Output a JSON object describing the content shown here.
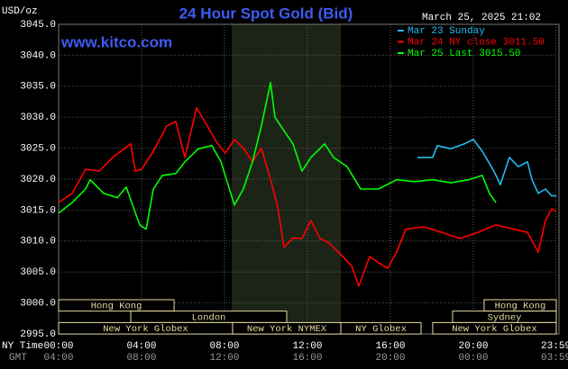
{
  "chart_data": {
    "type": "line",
    "title": "24 Hour Spot Gold (Bid)",
    "unit_label": "USD/oz",
    "timestamp": "March 25, 2025 21:02",
    "website": "www.kitco.com",
    "x_time_label": "NY Time",
    "x_gmt_label": "GMT",
    "xlim": [
      0,
      24
    ],
    "ylim": [
      2995,
      3045
    ],
    "xticks": [
      {
        "value": 0,
        "label": "00:00"
      },
      {
        "value": 4,
        "label": "04:00"
      },
      {
        "value": 8,
        "label": "08:00"
      },
      {
        "value": 12,
        "label": "12:00"
      },
      {
        "value": 16,
        "label": "16:00"
      },
      {
        "value": 20,
        "label": "20:00"
      },
      {
        "value": 23.98,
        "label": "23:59"
      }
    ],
    "gmt_labels": [
      "04:00",
      "08:00",
      "12:00",
      "16:00",
      "20:00",
      "00:00",
      "03:59"
    ],
    "yticks": [
      {
        "value": 2995,
        "label": "2995.0"
      },
      {
        "value": 3000,
        "label": "3000.0"
      },
      {
        "value": 3005,
        "label": "3005.0"
      },
      {
        "value": 3010,
        "label": "3010.0"
      },
      {
        "value": 3015,
        "label": "3015.0"
      },
      {
        "value": 3020,
        "label": "3020.0"
      },
      {
        "value": 3025,
        "label": "3025.0"
      },
      {
        "value": 3030,
        "label": "3030.0"
      },
      {
        "value": 3035,
        "label": "3035.0"
      },
      {
        "value": 3040,
        "label": "3040.0"
      },
      {
        "value": 3045,
        "label": "3045.0"
      }
    ],
    "grid": true,
    "series": [
      {
        "name": "Mar 23 Sunday",
        "color": "#22bbee",
        "x": [
          17.3,
          18.04,
          18.26,
          18.91,
          19.57,
          20,
          20.43,
          20.87,
          21.09,
          21.3,
          21.74,
          22.17,
          22.61,
          22.83,
          23.13,
          23.48,
          23.78,
          24
        ],
        "values": [
          3023.5,
          3023.5,
          3025.4,
          3024.9,
          3025.7,
          3026.4,
          3024.5,
          3022,
          3020.6,
          3019.1,
          3023.5,
          3022,
          3022.8,
          3019.9,
          3017.7,
          3018.4,
          3017.3,
          3017.3
        ]
      },
      {
        "name": "Mar 24 NY close 3011.50",
        "color": "#ff0000",
        "x": [
          0,
          0.65,
          1.3,
          1.96,
          2.61,
          3.48,
          3.7,
          4,
          4.57,
          5.22,
          5.65,
          6.09,
          6.65,
          7.17,
          7.61,
          8.04,
          8.48,
          8.91,
          9.35,
          9.78,
          10.22,
          10.57,
          10.87,
          11.3,
          11.74,
          12.17,
          12.61,
          13.04,
          13.7,
          14.13,
          14.48,
          15,
          15.43,
          15.87,
          16.3,
          16.74,
          17.61,
          18.48,
          19.35,
          20.22,
          21.09,
          21.96,
          22.61,
          23.13,
          23.48,
          23.78,
          24
        ],
        "values": [
          3016.2,
          3017.7,
          3021.6,
          3021.3,
          3023.5,
          3025.7,
          3021.3,
          3021.6,
          3024.5,
          3028.6,
          3029.3,
          3023.5,
          3031.5,
          3028.6,
          3026,
          3024.2,
          3026.4,
          3025,
          3022.8,
          3025,
          3019.9,
          3015.5,
          3009,
          3010.5,
          3010.4,
          3013.3,
          3010.4,
          3009.7,
          3007.5,
          3006,
          3002.7,
          3007.5,
          3006.5,
          3005.6,
          3008.2,
          3011.9,
          3012.3,
          3011.4,
          3010.4,
          3011.4,
          3012.6,
          3011.9,
          3011.4,
          3008.2,
          3013.3,
          3015.2,
          3014.8
        ]
      },
      {
        "name": "Mar 25 Last 3015.50",
        "color": "#00ff00",
        "x": [
          0,
          0.65,
          1.3,
          1.52,
          2.17,
          2.83,
          3.26,
          3.91,
          4.22,
          4.57,
          5,
          5.65,
          6.09,
          6.74,
          7.39,
          7.83,
          8.48,
          8.91,
          9.35,
          9.78,
          10.22,
          10.43,
          10.87,
          11.3,
          11.74,
          12.17,
          12.83,
          13.26,
          13.91,
          14.57,
          15.43,
          16.3,
          17.17,
          18.04,
          18.91,
          19.78,
          20.43,
          20.78,
          21.09
        ],
        "values": [
          3014.5,
          3016.2,
          3018.4,
          3019.9,
          3017.7,
          3017,
          3018.7,
          3012.6,
          3011.9,
          3018.4,
          3020.6,
          3020.9,
          3022.8,
          3024.9,
          3025.4,
          3022.8,
          3015.8,
          3018.4,
          3022.8,
          3028.6,
          3035.6,
          3030,
          3027.8,
          3025.7,
          3021.3,
          3023.5,
          3025.7,
          3023.5,
          3022,
          3018.4,
          3018.4,
          3019.9,
          3019.6,
          3019.9,
          3019.4,
          3019.9,
          3020.6,
          3017.7,
          3016.2
        ]
      }
    ],
    "sessions": [
      {
        "label": "Hong Kong",
        "start": 0,
        "end": 5.57,
        "row": 1
      },
      {
        "label": "Hong Kong",
        "start": 20.52,
        "end": 24,
        "row": 1
      },
      {
        "label": "London",
        "start": 3.48,
        "end": 11,
        "row": 2
      },
      {
        "label": "Sydney",
        "start": 19,
        "end": 24,
        "row": 2
      },
      {
        "label": "New York Globex",
        "start": 0,
        "end": 8.39,
        "row": 3
      },
      {
        "label": "New York NYMEX",
        "start": 8.39,
        "end": 13.61,
        "row": 3
      },
      {
        "label": "NY Globex",
        "start": 13.61,
        "end": 17.48,
        "row": 3
      },
      {
        "label": "New York Globex",
        "start": 18.04,
        "end": 24,
        "row": 3
      }
    ]
  }
}
